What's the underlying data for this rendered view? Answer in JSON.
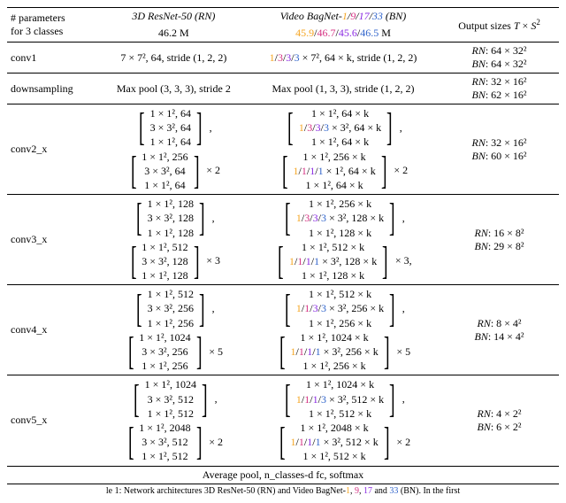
{
  "colors": {
    "orange": "#f5a623",
    "magenta": "#d63384",
    "purple": "#8a2be2",
    "blue": "#3366cc"
  },
  "header": {
    "params_line1": "# parameters",
    "params_line2": "for 3 classes",
    "rn_title_pre": "3D ResNet-50 (",
    "rn_title_em": "RN",
    "rn_title_post": ")",
    "bn_title_pre": "Video BagNet-",
    "bn_title_post": " (",
    "bn_title_em": "BN",
    "bn_title_end": ")",
    "rn_params": "46.2 M",
    "bn_params_suffix": " M",
    "out_label_pre": "Output sizes ",
    "out_T": "T",
    "out_times": " × ",
    "out_S": "S",
    "n1": "1",
    "n9": "9",
    "n17": "17",
    "n33": "33",
    "p1": "45.9",
    "p2": "46.7",
    "p3": "45.6",
    "p4": "46.5"
  },
  "rows": {
    "conv1": {
      "name": "conv1",
      "rn": "7 × 7², 64, stride (1, 2, 2)",
      "bn_mid": " × 7², 64 × k, stride (1, 2, 2)",
      "out_rn_pre": "RN",
      "out_rn": ": 64 × 32²",
      "out_bn_pre": "BN",
      "out_bn": ": 64 × 32²",
      "k1": "1",
      "k3": "3",
      "k3b": "3",
      "k3c": "3"
    },
    "down": {
      "name": "downsampling",
      "rn": "Max pool (3, 3, 3), stride 2",
      "bn": "Max pool (1, 3, 3), stride (1, 2, 2)",
      "out_rn_pre": "RN",
      "out_rn": ": 32 × 16²",
      "out_bn_pre": "BN",
      "out_bn": ": 62 × 16²"
    },
    "conv2": {
      "name": "conv2_x",
      "rn_b1_l1": "1 × 1², 64",
      "rn_b1_l2": "3 × 3², 64",
      "rn_b1_l3": "1 × 1², 64",
      "rn_b2_l1": "1 × 1², 256",
      "rn_b2_l2": "3 × 3², 64",
      "rn_b2_l3": "1 × 1², 64",
      "rn_mult": "× 2",
      "bn_b1_l1": "1 × 1², 64 × k",
      "bn_b1_l2_mid": " × 3², 64 × k",
      "bn_b1_l3": "1 × 1², 64 × k",
      "bn_b2_l1": "1 × 1², 256 × k",
      "bn_b2_l2_mid": " × 1², 64 × k",
      "bn_b2_l3": "1 × 1², 64 × k",
      "bn_mult": "× 2",
      "out_rn_pre": "RN",
      "out_rn": ": 32 × 16²",
      "out_bn_pre": "BN",
      "out_bn": ": 60 × 16²",
      "c1a": "1",
      "c1b": "3",
      "c1c": "3",
      "c1d": "3",
      "c2a": "1",
      "c2b": "1",
      "c2c": "1",
      "c2d": "1"
    },
    "conv3": {
      "name": "conv3_x",
      "rn_b1_l1": "1 × 1², 128",
      "rn_b1_l2": "3 × 3², 128",
      "rn_b1_l3": "1 × 1², 128",
      "rn_b2_l1": "1 × 1², 512",
      "rn_b2_l2": "3 × 3², 128",
      "rn_b2_l3": "1 × 1², 128",
      "rn_mult": "× 3",
      "bn_b1_l1": "1 × 1², 256 × k",
      "bn_b1_l2_mid": " × 3², 128 × k",
      "bn_b1_l3": "1 × 1², 128 × k",
      "bn_b2_l1": "1 × 1², 512 × k",
      "bn_b2_l2_mid": " × 3², 128 × k",
      "bn_b2_l3": "1 × 1², 128 × k",
      "bn_mult": "× 3,",
      "out_rn_pre": "RN",
      "out_rn": ": 16 × 8²",
      "out_bn_pre": "BN",
      "out_bn": ": 29 × 8²",
      "c1a": "1",
      "c1b": "3",
      "c1c": "3",
      "c1d": "3",
      "c2a": "1",
      "c2b": "1",
      "c2c": "1",
      "c2d": "1"
    },
    "conv4": {
      "name": "conv4_x",
      "rn_b1_l1": "1 × 1², 512",
      "rn_b1_l2": "3 × 3², 256",
      "rn_b1_l3": "1 × 1², 256",
      "rn_b2_l1": "1 × 1², 1024",
      "rn_b2_l2": "3 × 3², 256",
      "rn_b2_l3": "1 × 1², 256",
      "rn_mult": "× 5",
      "bn_b1_l1": "1 × 1², 512 × k",
      "bn_b1_l2_mid": " × 3², 256 × k",
      "bn_b1_l3": "1 × 1², 256 × k",
      "bn_b2_l1": "1 × 1², 1024 × k",
      "bn_b2_l2_mid": " × 3², 256 × k",
      "bn_b2_l3": "1 × 1², 256 × k",
      "bn_mult": "× 5",
      "out_rn_pre": "RN",
      "out_rn": ": 8 × 4²",
      "out_bn_pre": "BN",
      "out_bn": ": 14 × 4²",
      "c1a": "1",
      "c1b": "1",
      "c1c": "3",
      "c1d": "3",
      "c2a": "1",
      "c2b": "1",
      "c2c": "1",
      "c2d": "1"
    },
    "conv5": {
      "name": "conv5_x",
      "rn_b1_l1": "1 × 1², 1024",
      "rn_b1_l2": "3 × 3², 512",
      "rn_b1_l3": "1 × 1², 512",
      "rn_b2_l1": "1 × 1², 2048",
      "rn_b2_l2": "3 × 3², 512",
      "rn_b2_l3": "1 × 1², 512",
      "rn_mult": "× 2",
      "bn_b1_l1": "1 × 1², 1024 × k",
      "bn_b1_l2_mid": " × 3², 512 × k",
      "bn_b1_l3": "1 × 1², 512 × k",
      "bn_b2_l1": "1 × 1², 2048 × k",
      "bn_b2_l2_mid": " × 3², 512 × k",
      "bn_b2_l3": "1 × 1², 512 × k",
      "bn_mult": "× 2",
      "out_rn_pre": "RN",
      "out_rn": ": 4 × 2²",
      "out_bn_pre": "BN",
      "out_bn": ": 6 × 2²",
      "c1a": "1",
      "c1b": "1",
      "c1c": "1",
      "c1d": "3",
      "c2a": "1",
      "c2b": "1",
      "c2c": "1",
      "c2d": "1"
    }
  },
  "footer": "Average pool, n_classes-d fc, softmax",
  "caption_prefix": "le 1: Network architectures 3D ResNet-50 (RN) and Video BagNet-",
  "caption_suffix": " (BN). In the first ",
  "slash": "/",
  "sq": "²"
}
